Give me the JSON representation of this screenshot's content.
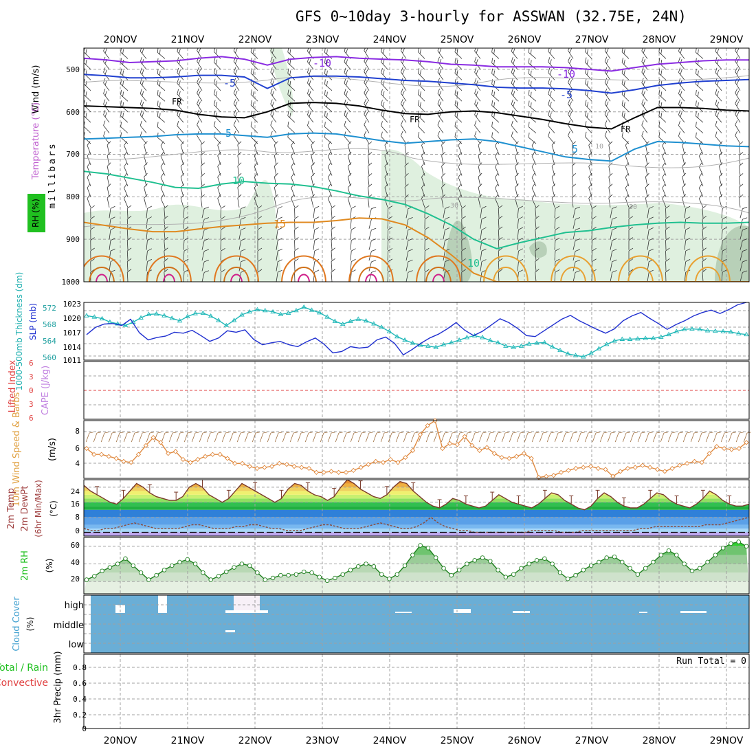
{
  "title": "GFS 0~10day 3-hourly for ASSWAN (32.75E, 24N)",
  "date_labels": [
    "20NOV",
    "21NOV",
    "22NOV",
    "23NOV",
    "24NOV",
    "25NOV",
    "26NOV",
    "27NOV",
    "28NOV",
    "29NOV"
  ],
  "colors": {
    "purple": "#8a2be2",
    "blue": "#2040d0",
    "lightblue": "#1e90d0",
    "teal": "#20c090",
    "orange": "#e08a20",
    "magenta": "#d0208a",
    "black": "#000000",
    "rh_shade": "#d8ecd8",
    "cyan": "#20b8b8",
    "slp": "#2030d0",
    "wind10": "#e08a40",
    "cloud": "#6aaed6",
    "grid": "#a0a0a0",
    "red": "#e04040",
    "label_purple": "#c080e0",
    "label_green": "#20c020"
  },
  "chart_data": [
    {
      "type": "heatmap",
      "panel": "upper-air",
      "ylabel": "millibars",
      "left_labels": {
        "wind": "Wind (m/s)",
        "temp": "Temperature (°C)",
        "rh": "RH (%)"
      },
      "y_ticks": [
        "500",
        "600",
        "700",
        "800",
        "900",
        "1000"
      ],
      "contour_labels": [
        {
          "text": "-10",
          "level": -10,
          "color": "purple"
        },
        {
          "text": "-10",
          "level": -10,
          "color": "purple"
        },
        {
          "text": "-5",
          "level": -5,
          "color": "blue"
        },
        {
          "text": "-5",
          "level": -5,
          "color": "blue"
        },
        {
          "text": "FR",
          "level": 0,
          "color": "black"
        },
        {
          "text": "FR",
          "level": 0,
          "color": "black"
        },
        {
          "text": "FR",
          "level": 0,
          "color": "black"
        },
        {
          "text": "5",
          "level": 5,
          "color": "lightblue"
        },
        {
          "text": "5",
          "level": 5,
          "color": "lightblue"
        },
        {
          "text": "10",
          "level": 10,
          "color": "teal"
        },
        {
          "text": "10",
          "level": 10,
          "color": "teal"
        },
        {
          "text": "15",
          "level": 15,
          "color": "orange"
        },
        {
          "text": "30",
          "level": 30,
          "color": "grid"
        },
        {
          "text": "30",
          "level": 30,
          "color": "grid"
        },
        {
          "text": "10",
          "level": 10,
          "color": "grid"
        }
      ],
      "contours": [
        {
          "name": "-10C",
          "color": "purple",
          "p": [
            474,
            478,
            484,
            482,
            480,
            474,
            470,
            476,
            490,
            476,
            472,
            470,
            474,
            476,
            478,
            482,
            488,
            490,
            494,
            494,
            494,
            496,
            500,
            504,
            496,
            488,
            484,
            480,
            478,
            478
          ]
        },
        {
          "name": "-5C",
          "color": "blue",
          "p": [
            512,
            515,
            520,
            520,
            518,
            514,
            514,
            518,
            545,
            520,
            516,
            516,
            518,
            522,
            526,
            528,
            532,
            536,
            542,
            544,
            544,
            546,
            550,
            556,
            548,
            538,
            532,
            528,
            526,
            524
          ]
        },
        {
          "name": "0C",
          "color": "black",
          "p": [
            586,
            588,
            590,
            592,
            596,
            606,
            612,
            614,
            600,
            580,
            578,
            580,
            586,
            596,
            604,
            606,
            600,
            598,
            602,
            610,
            618,
            628,
            636,
            640,
            614,
            590,
            590,
            592,
            596,
            598
          ]
        },
        {
          "name": "5C",
          "color": "lightblue",
          "p": [
            664,
            662,
            660,
            658,
            654,
            652,
            652,
            656,
            660,
            652,
            650,
            652,
            660,
            668,
            674,
            670,
            666,
            664,
            670,
            682,
            694,
            706,
            712,
            716,
            688,
            670,
            672,
            676,
            680,
            682
          ]
        },
        {
          "name": "10C",
          "color": "teal",
          "p": [
            740,
            746,
            756,
            766,
            778,
            780,
            770,
            764,
            768,
            770,
            776,
            786,
            798,
            806,
            818,
            840,
            866,
            900,
            922,
            908,
            896,
            884,
            880,
            872,
            866,
            862,
            860,
            862,
            862,
            860
          ]
        },
        {
          "name": "15C",
          "color": "orange",
          "p": [
            860,
            868,
            876,
            882,
            882,
            876,
            870,
            866,
            862,
            860,
            860,
            856,
            850,
            852,
            866,
            896,
            936,
            980,
            1000,
            1000,
            1000,
            1000,
            1000,
            1000,
            1000,
            1000,
            1000,
            1000,
            1000,
            1000
          ]
        }
      ]
    },
    {
      "type": "line",
      "panel": "slp-thickness",
      "left_labels": {
        "thk": "1000-500mb Thickness (dm)",
        "slp": "SLP (mb)"
      },
      "y_ticks_left": [
        "572",
        "568",
        "564",
        "560"
      ],
      "y_ticks_right": [
        "1023",
        "1020",
        "1017",
        "1014",
        "1011"
      ],
      "ylim_left": [
        559.5,
        573
      ],
      "ylim_right": [
        1011,
        1023
      ],
      "series": [
        {
          "name": "1000-500mb Thickness",
          "unit": "dm",
          "color": "cyan",
          "values": [
            569.9,
            569.6,
            569.2,
            568.4,
            568.0,
            567.6,
            568.4,
            569.4,
            570.2,
            570.3,
            569.9,
            569.3,
            568.7,
            569.7,
            570.4,
            570.5,
            569.8,
            568.8,
            567.6,
            568.8,
            570.1,
            570.8,
            571.3,
            571.1,
            570.8,
            570.2,
            570.5,
            571.1,
            571.9,
            571.2,
            570.6,
            569.6,
            568.6,
            567.9,
            568.6,
            569.1,
            568.7,
            568.0,
            567.2,
            566.2,
            565.0,
            564.2,
            563.5,
            563.0,
            562.8,
            562.5,
            563.1,
            563.6,
            564.2,
            564.8,
            565.2,
            564.8,
            564.1,
            563.6,
            562.8,
            562.5,
            562.8,
            563.3,
            563.5,
            563.6,
            562.6,
            561.8,
            561.0,
            560.6,
            560.3,
            561.1,
            562.2,
            563.2,
            564.0,
            564.4,
            564.4,
            564.5,
            564.6,
            564.6,
            564.9,
            565.5,
            566.2,
            566.7,
            566.8,
            566.7,
            566.4,
            566.3,
            566.2,
            566.1,
            565.7,
            565.5
          ]
        },
        {
          "name": "SLP",
          "unit": "mb",
          "color": "slp",
          "values": [
            1016.3,
            1017.8,
            1018.5,
            1018.6,
            1018.2,
            1019.5,
            1016.7,
            1015.2,
            1015.7,
            1016.0,
            1016.8,
            1016.6,
            1017.2,
            1016.1,
            1014.9,
            1015.6,
            1017.1,
            1016.8,
            1017.3,
            1015.3,
            1014.2,
            1014.6,
            1014.9,
            1014.2,
            1013.8,
            1014.8,
            1015.6,
            1014.3,
            1012.5,
            1012.8,
            1013.8,
            1013.5,
            1013.7,
            1015.2,
            1015.8,
            1014.5,
            1012.1,
            1013.2,
            1014.5,
            1015.6,
            1016.4,
            1017.5,
            1018.8,
            1017.2,
            1016.1,
            1017.0,
            1018.3,
            1019.6,
            1018.8,
            1017.6,
            1016.1,
            1015.9,
            1017.1,
            1018.3,
            1019.5,
            1020.3,
            1019.2,
            1018.3,
            1017.4,
            1016.6,
            1017.5,
            1019.2,
            1020.2,
            1020.9,
            1019.7,
            1018.6,
            1017.4,
            1018.4,
            1019.2,
            1020.2,
            1020.9,
            1021.4,
            1020.7,
            1021.5,
            1022.5,
            1023.0
          ]
        }
      ]
    },
    {
      "type": "line",
      "panel": "cape-li",
      "left_labels": {
        "li": "Lifted Index",
        "cape": "CAPE (J/kg)"
      },
      "y_ticks": [
        "6",
        "3",
        "0",
        "3",
        "6"
      ],
      "series": [
        {
          "name": "Lifted Index",
          "values": []
        },
        {
          "name": "CAPE",
          "values": []
        }
      ]
    },
    {
      "type": "line",
      "panel": "wind10m",
      "left_labels": {
        "name": "10m Wind Speed & Barbs",
        "unit": "(m/s)"
      },
      "y_ticks": [
        "8",
        "6",
        "4"
      ],
      "ylim": [
        3,
        8.8
      ],
      "series": [
        {
          "name": "10m Wind Speed",
          "unit": "m/s",
          "color": "wind10",
          "values": [
            6.0,
            5.4,
            5.4,
            5.2,
            5.0,
            4.7,
            4.6,
            5.4,
            6.3,
            7.1,
            6.6,
            5.5,
            5.7,
            4.9,
            4.6,
            4.9,
            5.2,
            5.4,
            5.4,
            5.0,
            4.5,
            4.5,
            4.2,
            4.0,
            4.1,
            4.2,
            4.5,
            4.4,
            4.2,
            4.1,
            4.0,
            3.6,
            3.6,
            3.7,
            3.6,
            3.6,
            3.8,
            4.1,
            4.4,
            4.7,
            4.6,
            4.9,
            4.6,
            5.1,
            5.8,
            7.4,
            8.3,
            8.8,
            6.0,
            6.5,
            6.4,
            7.2,
            6.3,
            5.8,
            6.1,
            5.5,
            5.1,
            5.0,
            5.2,
            5.5,
            5.0,
            3.1,
            3.2,
            3.3,
            3.6,
            3.8,
            4.0,
            4.1,
            4.2,
            4.0,
            3.9,
            3.2,
            3.7,
            4.0,
            4.1,
            4.3,
            4.1,
            3.9,
            3.7,
            4.0,
            4.3,
            4.5,
            4.7,
            4.6,
            5.5,
            6.2,
            6.0,
            5.9,
            6.0,
            6.6
          ]
        }
      ]
    },
    {
      "type": "area",
      "panel": "temp2m",
      "left_labels": {
        "a": "2m Temp",
        "b": "2m DewPt",
        "c": "(6hr Min/Max)"
      },
      "unit": "(°C)",
      "y_ticks": [
        "24",
        "16",
        "8",
        "0"
      ],
      "ylim": [
        -2,
        28
      ],
      "series": [
        {
          "name": "2m Temp",
          "values": [
            25,
            22,
            20,
            18,
            16,
            15,
            18,
            22,
            26,
            24,
            21,
            19,
            18,
            17,
            17,
            19,
            24,
            26,
            24,
            20,
            18,
            16,
            18,
            22,
            26,
            24,
            22,
            20,
            18,
            16,
            18,
            23,
            26,
            25,
            22,
            20,
            19,
            17,
            19,
            24,
            28,
            26,
            23,
            21,
            19,
            18,
            20,
            24,
            27,
            26,
            22,
            19,
            16,
            14,
            13,
            15,
            18,
            17,
            15,
            14,
            13,
            14,
            17,
            20,
            18,
            16,
            15,
            14,
            13,
            15,
            18,
            21,
            20,
            17,
            15,
            13,
            12,
            14,
            18,
            21,
            19,
            16,
            14,
            13,
            13,
            15,
            18,
            21,
            20,
            17,
            15,
            14,
            13,
            15,
            18,
            22,
            20,
            17,
            15,
            14,
            14,
            15
          ]
        },
        {
          "name": "2m DewPt",
          "values": [
            2,
            1,
            1,
            2,
            2,
            3,
            4,
            5,
            4,
            3,
            2,
            2,
            2,
            2,
            3,
            4,
            4,
            3,
            2,
            2,
            2,
            3,
            3,
            4,
            4,
            3,
            2,
            2,
            1,
            1,
            1,
            2,
            3,
            4,
            4,
            3,
            2,
            2,
            2,
            3,
            4,
            5,
            4,
            3,
            2,
            2,
            3,
            5,
            8,
            5,
            3,
            2,
            1,
            1,
            0,
            0,
            0,
            0,
            0,
            0,
            0,
            0,
            1,
            1,
            1,
            1,
            0,
            0,
            0,
            1,
            1,
            1,
            1,
            1,
            1,
            1,
            1,
            2,
            2,
            3,
            3,
            3,
            3,
            3,
            3,
            3,
            4,
            4,
            4,
            5,
            6,
            7,
            8
          ]
        }
      ]
    },
    {
      "type": "area",
      "panel": "rh2m",
      "left_labels": {
        "name": "2m RH",
        "unit": "(%)"
      },
      "y_ticks": [
        "60",
        "40",
        "20"
      ],
      "ylim": [
        6,
        70
      ],
      "series": [
        {
          "name": "2m RH",
          "unit": "%",
          "values": [
            22,
            26,
            32,
            36,
            40,
            46,
            38,
            30,
            22,
            27,
            33,
            38,
            42,
            45,
            40,
            30,
            22,
            26,
            31,
            36,
            40,
            38,
            30,
            22,
            24,
            27,
            27,
            28,
            31,
            30,
            25,
            21,
            24,
            28,
            33,
            37,
            40,
            37,
            28,
            23,
            28,
            38,
            50,
            61,
            58,
            47,
            35,
            27,
            33,
            40,
            44,
            47,
            43,
            33,
            25,
            28,
            35,
            40,
            44,
            46,
            40,
            30,
            23,
            27,
            33,
            38,
            42,
            47,
            48,
            42,
            35,
            28,
            35,
            42,
            50,
            55,
            50,
            40,
            32,
            35,
            42,
            50,
            58,
            63,
            65,
            60
          ]
        }
      ]
    },
    {
      "type": "heatmap",
      "panel": "cloud",
      "left_labels": {
        "name": "Cloud Cover",
        "unit": "(%)"
      },
      "y_ticks": [
        "high",
        "middle",
        "low"
      ]
    },
    {
      "type": "bar",
      "panel": "precip",
      "left_labels": {
        "total": "Total / Rain",
        "conv": "Convective",
        "axis": "3hr Precip (mm)"
      },
      "y_ticks": [
        "0.8",
        "0.6",
        "0.4",
        "0.2",
        "0"
      ],
      "ylim": [
        0,
        0.95
      ],
      "run_total": "Run Total = 0",
      "values": []
    }
  ]
}
